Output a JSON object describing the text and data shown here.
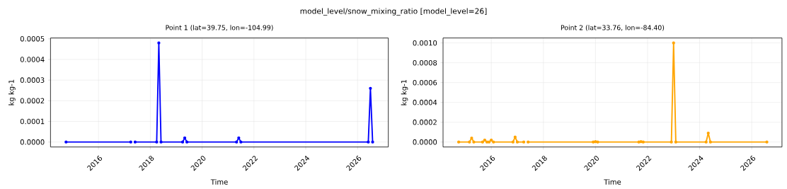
{
  "chart_data": [
    {
      "type": "line",
      "title": "Point 1 (lat=39.75, lon=-104.99)",
      "xlabel": "Time",
      "ylabel": "kg kg-1",
      "annotations": [
        "model_level/snow_mixing_ratio [model_level=26]"
      ],
      "x": [
        "2014-10",
        "2017-04",
        "2017-05",
        "2017-06",
        "2018-04",
        "2018-05",
        "2018-06",
        "2019-04",
        "2019-05",
        "2019-06",
        "2021-05",
        "2021-06",
        "2021-07",
        "2026-06",
        "2026-07",
        "2026-08"
      ],
      "values": [
        0,
        0,
        null,
        0,
        0,
        0.00048,
        0,
        0,
        2e-05,
        0,
        0,
        2e-05,
        0,
        0,
        0.00026,
        0
      ],
      "color": "#0000ff",
      "marker": "circle",
      "grid": true,
      "xlim": [
        "2014-02-24",
        "2027-03-10"
      ],
      "xticks": [
        "2016",
        "2018",
        "2020",
        "2022",
        "2024",
        "2026"
      ],
      "ylim": [
        -2.4e-05,
        0.000504
      ],
      "yticks": [
        {
          "value": 0,
          "label": "0.0000"
        },
        {
          "value": 0.0001,
          "label": "0.0001"
        },
        {
          "value": 0.0002,
          "label": "0.0002"
        },
        {
          "value": 0.0003,
          "label": "0.0003"
        },
        {
          "value": 0.0004,
          "label": "0.0004"
        },
        {
          "value": 0.0005,
          "label": "0.0005"
        }
      ]
    },
    {
      "type": "line",
      "title": "Point 2 (lat=33.76, lon=-84.40)",
      "xlabel": "Time",
      "ylabel": "kg kg-1",
      "x": [
        "2014-10",
        "2015-03",
        "2015-04",
        "2015-05",
        "2015-09",
        "2015-10",
        "2015-11",
        "2015-12",
        "2016-01",
        "2016-02",
        "2016-11",
        "2016-12",
        "2017-01",
        "2017-04",
        "2017-05",
        "2017-06",
        "2019-12",
        "2020-01",
        "2020-02",
        "2021-09",
        "2021-10",
        "2021-11",
        "2022-12",
        "2023-01",
        "2023-02",
        "2024-04",
        "2024-05",
        "2024-06",
        "2026-08"
      ],
      "values": [
        0,
        0,
        4e-05,
        0,
        0,
        2e-05,
        0,
        0,
        2e-05,
        0,
        0,
        5e-05,
        0,
        0,
        null,
        0,
        0,
        3e-06,
        0,
        0,
        3e-06,
        0,
        0,
        0.001,
        0,
        0,
        9e-05,
        0,
        0
      ],
      "color": "#ffa500",
      "marker": "circle",
      "grid": true,
      "xlim": [
        "2014-02-24",
        "2027-03-01"
      ],
      "xticks": [
        "2016",
        "2018",
        "2020",
        "2022",
        "2024",
        "2026"
      ],
      "ylim": [
        -5e-05,
        0.00105
      ],
      "yticks": [
        {
          "value": 0,
          "label": "0.0000"
        },
        {
          "value": 0.0002,
          "label": "0.0002"
        },
        {
          "value": 0.0004,
          "label": "0.0004"
        },
        {
          "value": 0.0006,
          "label": "0.0006"
        },
        {
          "value": 0.0008,
          "label": "0.0008"
        },
        {
          "value": 0.001,
          "label": "0.0010"
        }
      ]
    }
  ]
}
